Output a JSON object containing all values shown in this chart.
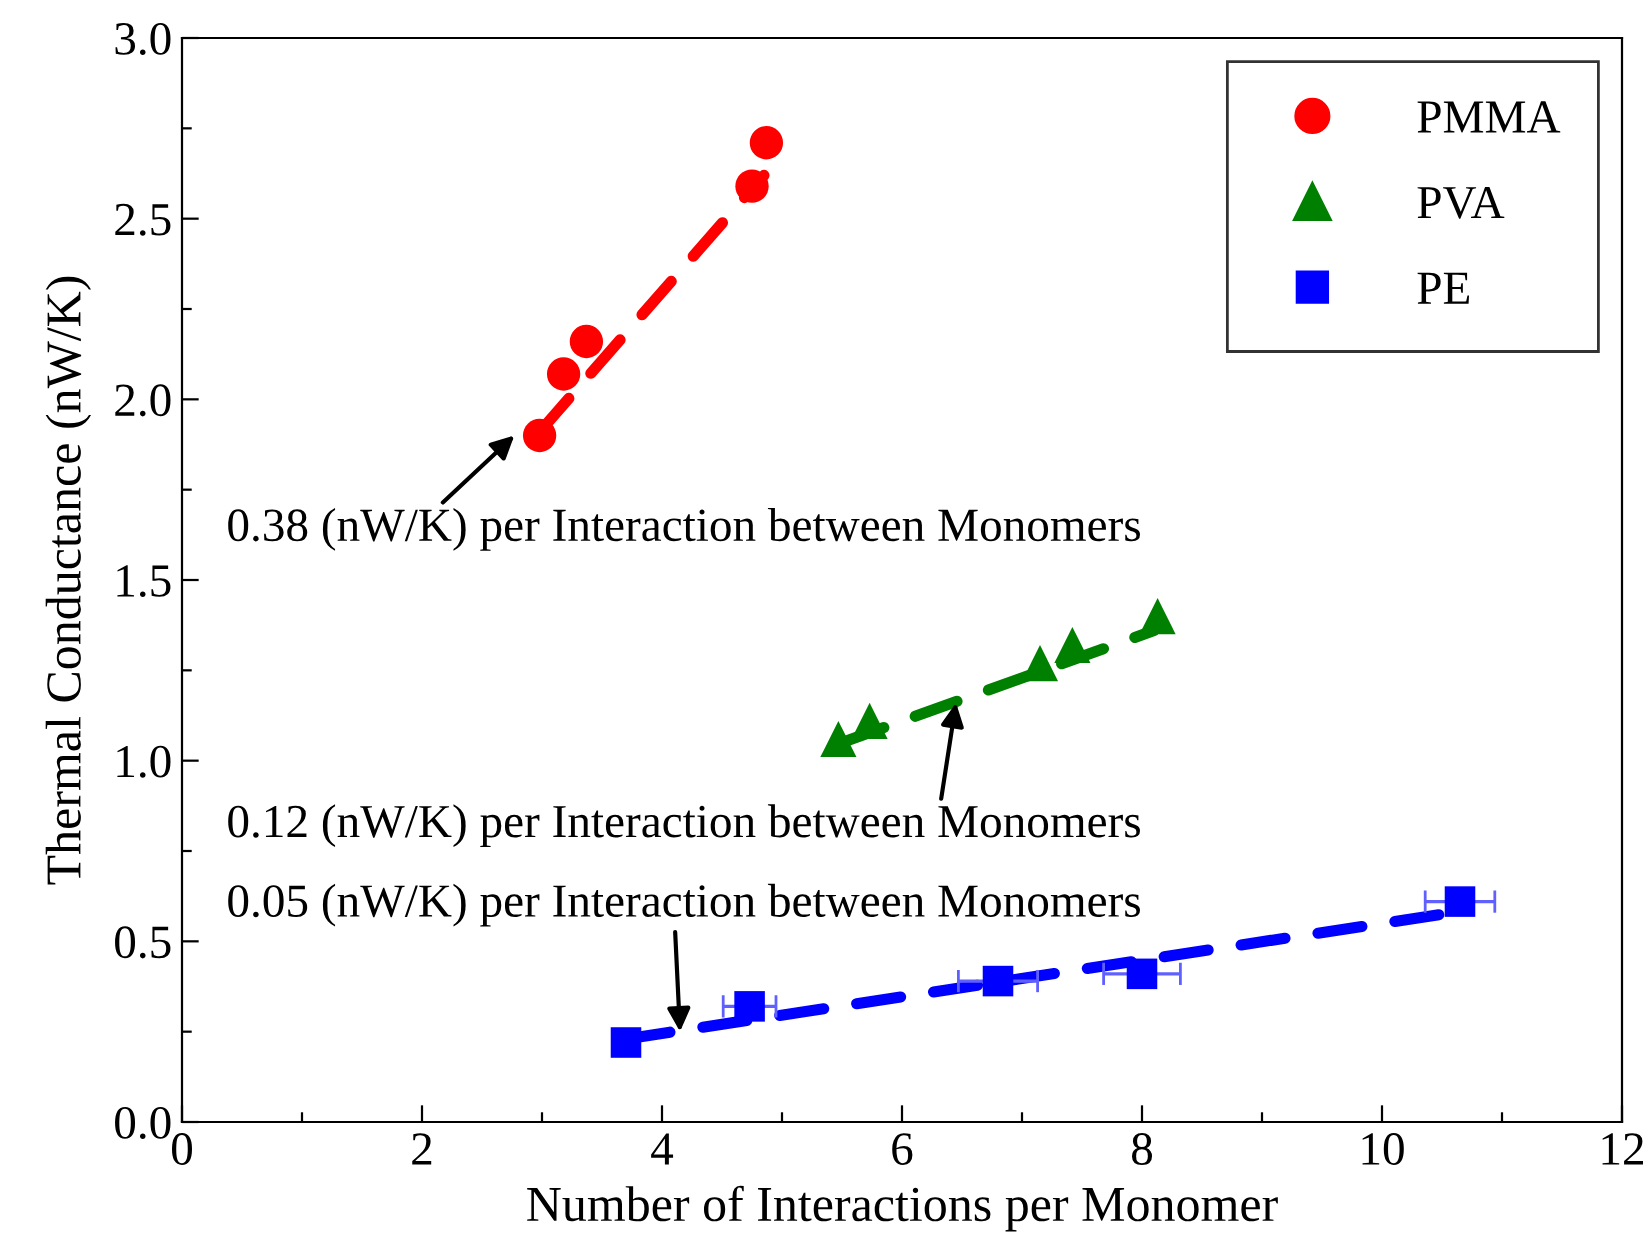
{
  "chart_data": {
    "type": "scatter",
    "xlabel": "Number of Interactions per Monomer",
    "ylabel": "Thermal Conductance (nW/K)",
    "xlim": [
      0,
      12
    ],
    "ylim": [
      0,
      3.0
    ],
    "xticks": [
      0,
      {
        "value": 1,
        "label": null
      },
      2,
      {
        "value": 3,
        "label": null
      },
      4,
      {
        "value": 5,
        "label": null
      },
      6,
      {
        "value": 7,
        "label": null
      },
      8,
      {
        "value": 9,
        "label": null
      },
      10,
      {
        "value": 11,
        "label": null
      },
      12
    ],
    "yticks": [
      {
        "value": 0,
        "label": "0.0"
      },
      {
        "value": 0.25,
        "label": null
      },
      {
        "value": 0.5,
        "label": "0.5"
      },
      {
        "value": 0.75,
        "label": null
      },
      {
        "value": 1.0,
        "label": "1.0"
      },
      {
        "value": 1.25,
        "label": null
      },
      {
        "value": 1.5,
        "label": "1.5"
      },
      {
        "value": 1.75,
        "label": null
      },
      {
        "value": 2.0,
        "label": "2.0"
      },
      {
        "value": 2.25,
        "label": null
      },
      {
        "value": 2.5,
        "label": "2.5"
      },
      {
        "value": 2.75,
        "label": null
      },
      {
        "value": 3.0,
        "label": "3.0"
      }
    ],
    "grid": false,
    "legend": "top right",
    "series": [
      {
        "type": "line",
        "line_style": "dashed",
        "marker": "none",
        "color": "#ff0000",
        "x": [
          2.98,
          4.85
        ],
        "values": [
          1.91,
          2.62
        ]
      },
      {
        "type": "line",
        "line_style": "dashed",
        "marker": "none",
        "color": "#008000",
        "x": [
          5.5,
          8.1
        ],
        "values": [
          1.05,
          1.36
        ]
      },
      {
        "type": "line",
        "line_style": "dashed",
        "marker": "none",
        "color": "#0000ff",
        "x": [
          3.7,
          10.6
        ],
        "values": [
          0.23,
          0.58
        ]
      },
      {
        "name": "PMMA",
        "marker": "circle",
        "color": "#ff0000",
        "x": [
          2.98,
          3.18,
          3.37,
          4.75,
          4.87
        ],
        "values": [
          1.9,
          2.07,
          2.16,
          2.59,
          2.71
        ]
      },
      {
        "name": "PVA",
        "marker": "triangle",
        "color": "#008000",
        "x": [
          5.47,
          5.73,
          7.15,
          7.42,
          8.13
        ],
        "values": [
          1.06,
          1.11,
          1.27,
          1.32,
          1.4
        ]
      },
      {
        "name": "PE",
        "marker": "square",
        "color": "#0000ff",
        "x": [
          3.7,
          4.73,
          6.8,
          8.0,
          10.65
        ],
        "values": [
          0.22,
          0.32,
          0.39,
          0.41,
          0.61
        ],
        "xerrors": [
          null,
          0.22,
          0.33,
          0.32,
          0.29
        ]
      }
    ],
    "annotations": [
      {
        "text": "0.38 (nW/K) per Interaction between Monomers",
        "x": 2.77,
        "y": 1.9
      },
      {
        "text": "0.12 (nW/K) per Interaction between Monomers",
        "x": 6.45,
        "y": 1.16
      },
      {
        "text": "0.05 (nW/K) per Interaction between Monomers",
        "x": 4.15,
        "y": 0.25
      }
    ]
  }
}
